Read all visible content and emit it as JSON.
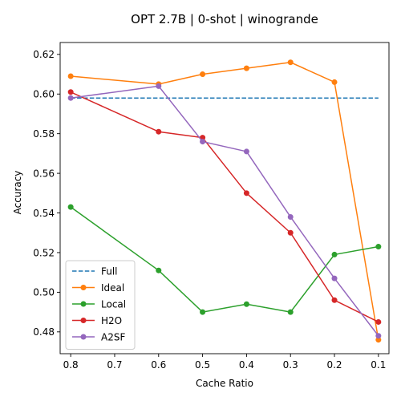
{
  "chart_data": {
    "type": "line",
    "title": "OPT 2.7B | 0-shot | winogrande",
    "xlabel": "Cache Ratio",
    "ylabel": "Accuracy",
    "x": [
      0.8,
      0.6,
      0.5,
      0.4,
      0.3,
      0.2,
      0.1
    ],
    "x_ticks": [
      0.8,
      0.7,
      0.6,
      0.5,
      0.4,
      0.3,
      0.2,
      0.1
    ],
    "x_tick_labels": [
      "0.8",
      "0.7",
      "0.6",
      "0.5",
      "0.4",
      "0.3",
      "0.2",
      "0.1"
    ],
    "xlim": [
      0.824,
      0.076
    ],
    "x_inverted": true,
    "y_ticks": [
      0.48,
      0.5,
      0.52,
      0.54,
      0.56,
      0.58,
      0.6,
      0.62
    ],
    "y_tick_labels": [
      "0.48",
      "0.50",
      "0.52",
      "0.54",
      "0.56",
      "0.58",
      "0.60",
      "0.62"
    ],
    "ylim": [
      0.469,
      0.626
    ],
    "grid": false,
    "legend_position": "lower-left",
    "series": [
      {
        "name": "Full",
        "color": "#1f77b4",
        "style": "dashed",
        "marker": "none",
        "values": [
          0.598,
          0.598,
          0.598,
          0.598,
          0.598,
          0.598,
          0.598
        ]
      },
      {
        "name": "Ideal",
        "color": "#ff7f0e",
        "style": "solid",
        "marker": "circle",
        "values": [
          0.609,
          0.605,
          0.61,
          0.613,
          0.616,
          0.606,
          0.476
        ]
      },
      {
        "name": "Local",
        "color": "#2ca02c",
        "style": "solid",
        "marker": "circle",
        "values": [
          0.543,
          0.511,
          0.49,
          0.494,
          0.49,
          0.519,
          0.523
        ]
      },
      {
        "name": "H2O",
        "color": "#d62728",
        "style": "solid",
        "marker": "circle",
        "values": [
          0.601,
          0.581,
          0.578,
          0.55,
          0.53,
          0.496,
          0.485
        ]
      },
      {
        "name": "A2SF",
        "color": "#9467bd",
        "style": "solid",
        "marker": "circle",
        "values": [
          0.598,
          0.604,
          0.576,
          0.571,
          0.538,
          0.507,
          0.478
        ]
      }
    ]
  }
}
